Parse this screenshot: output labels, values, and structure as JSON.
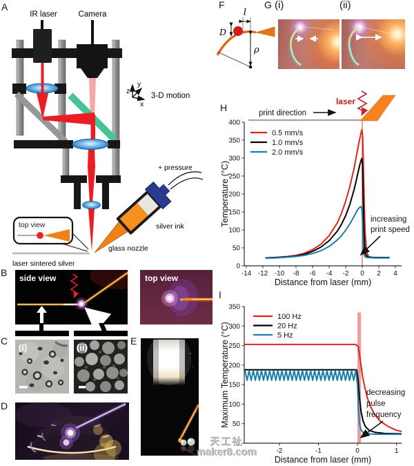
{
  "figure": {
    "panels": {
      "A": {
        "label": "A",
        "ir_laser": "IR laser",
        "camera": "Camera",
        "motion": "3-D motion",
        "axis_x": "x",
        "axis_y": "y",
        "axis_z": "z",
        "pressure": "+ pressure",
        "silver_ink": "silver ink",
        "glass_nozzle": "glass nozzle",
        "substrate": "laser sintered silver",
        "inset_title": "top view"
      },
      "B": {
        "label": "B",
        "side_view": "side view",
        "top_view": "top view"
      },
      "C": {
        "label": "C",
        "i": "(i)",
        "ii": "(ii)"
      },
      "D": {
        "label": "D"
      },
      "E": {
        "label": "E"
      },
      "F": {
        "label": "F",
        "dia": "D",
        "len": "l",
        "rho": "ρ"
      },
      "G": {
        "label": "G",
        "i": "(i)",
        "ii": "(ii)"
      },
      "H": {
        "label": "H"
      },
      "I": {
        "label": "I"
      }
    },
    "watermark": {
      "line1": "天工社",
      "line2": "maker8.com"
    }
  },
  "chart_data": [
    {
      "id": "H",
      "type": "line",
      "xlabel": "Distance from laser (mm)",
      "ylabel": "Temperature (°C)",
      "xlim": [
        -14.25,
        4.75
      ],
      "ylim": [
        0,
        400
      ],
      "xticks": [
        -14,
        -12,
        -10,
        -8,
        -6,
        -4,
        -2,
        0,
        2,
        4
      ],
      "yticks": [
        0,
        50,
        100,
        150,
        200,
        250,
        300,
        350,
        400
      ],
      "grid": false,
      "legend_position": "top-left inside",
      "print_direction": "print direction",
      "laser_label": "laser",
      "annotation_lines": [
        "increasing",
        "print speed"
      ],
      "laser_line": {
        "x": 0,
        "color": "#cf6f6f",
        "extend_top": 3
      },
      "series": [
        {
          "name": "0.5 mm/s",
          "color": "#e02418",
          "points": [
            [
              -11.7,
              22
            ],
            [
              -10.5,
              23
            ],
            [
              -9,
              26
            ],
            [
              -8,
              29
            ],
            [
              -7,
              35
            ],
            [
              -6,
              45
            ],
            [
              -5,
              60
            ],
            [
              -4,
              84
            ],
            [
              -3,
              120
            ],
            [
              -2.5,
              147
            ],
            [
              -2,
              180
            ],
            [
              -1.5,
              221
            ],
            [
              -1,
              270
            ],
            [
              -0.7,
              307
            ],
            [
              -0.5,
              331
            ],
            [
              -0.3,
              354
            ],
            [
              -0.15,
              370
            ],
            [
              -0.05,
              379
            ],
            [
              0.05,
              362
            ],
            [
              0.15,
              270
            ],
            [
              0.25,
              165
            ],
            [
              0.35,
              90
            ],
            [
              0.5,
              45
            ],
            [
              0.65,
              30
            ],
            [
              0.85,
              25
            ],
            [
              1.2,
              23
            ],
            [
              2,
              23
            ],
            [
              3.3,
              23
            ]
          ]
        },
        {
          "name": "1.0 mm/s",
          "color": "#000000",
          "points": [
            [
              -11.7,
              22
            ],
            [
              -10.5,
              23
            ],
            [
              -9,
              25
            ],
            [
              -8,
              27
            ],
            [
              -7,
              32
            ],
            [
              -6,
              40
            ],
            [
              -5,
              52
            ],
            [
              -4,
              70
            ],
            [
              -3,
              97
            ],
            [
              -2.5,
              116
            ],
            [
              -2,
              140
            ],
            [
              -1.5,
              171
            ],
            [
              -1,
              211
            ],
            [
              -0.7,
              240
            ],
            [
              -0.5,
              261
            ],
            [
              -0.3,
              281
            ],
            [
              -0.15,
              293
            ],
            [
              -0.05,
              299
            ],
            [
              0.02,
              288
            ],
            [
              0.1,
              205
            ],
            [
              0.18,
              115
            ],
            [
              0.28,
              58
            ],
            [
              0.4,
              33
            ],
            [
              0.55,
              26
            ],
            [
              0.8,
              24
            ],
            [
              1.5,
              23
            ],
            [
              3.3,
              23
            ]
          ]
        },
        {
          "name": "2.0 mm/s",
          "color": "#177fad",
          "points": [
            [
              -11.7,
              21
            ],
            [
              -10.5,
              22
            ],
            [
              -9,
              24
            ],
            [
              -8,
              26
            ],
            [
              -7,
              29
            ],
            [
              -6,
              34
            ],
            [
              -5,
              42
            ],
            [
              -4,
              54
            ],
            [
              -3,
              72
            ],
            [
              -2.5,
              84
            ],
            [
              -2,
              99
            ],
            [
              -1.5,
              117
            ],
            [
              -1,
              137
            ],
            [
              -0.7,
              150
            ],
            [
              -0.5,
              158
            ],
            [
              -0.3,
              163
            ],
            [
              -0.15,
              165
            ],
            [
              -0.05,
              160
            ],
            [
              0.02,
              135
            ],
            [
              0.08,
              85
            ],
            [
              0.15,
              48
            ],
            [
              0.25,
              29
            ],
            [
              0.4,
              24
            ],
            [
              0.6,
              23
            ],
            [
              1.5,
              22
            ],
            [
              3.3,
              22
            ]
          ]
        }
      ]
    },
    {
      "id": "I",
      "type": "line",
      "xlabel": "Distance from laser (mm)",
      "ylabel": "Maximum Temperature (°C)",
      "xlim": [
        -2.9,
        1.13
      ],
      "ylim": [
        0,
        350
      ],
      "xticks": [
        -2,
        -1,
        0,
        1
      ],
      "yticks": [
        0,
        50,
        100,
        150,
        200,
        250,
        300,
        350
      ],
      "grid": false,
      "legend_position": "top-left inside",
      "annotation_lines": [
        "decreasing",
        "pulse",
        "frequency"
      ],
      "laser_band": {
        "x0": 0,
        "x1": 0.09,
        "y_top": 335,
        "color": "#ef9090",
        "opacity": 0.9
      },
      "series": [
        {
          "name": "100 Hz",
          "color": "#e02418",
          "points": [
            [
              -2.9,
              253
            ],
            [
              -1.5,
              253
            ],
            [
              -0.5,
              253
            ],
            [
              -0.05,
              253
            ],
            [
              0.02,
              248
            ],
            [
              0.05,
              228
            ],
            [
              0.09,
              200
            ],
            [
              0.13,
              172
            ],
            [
              0.18,
              146
            ],
            [
              0.25,
              117
            ],
            [
              0.33,
              95
            ],
            [
              0.45,
              72
            ],
            [
              0.6,
              55
            ],
            [
              0.8,
              42
            ],
            [
              1,
              33
            ],
            [
              1.13,
              30
            ]
          ]
        },
        {
          "name": "20 Hz",
          "color": "#000000",
          "points": [
            [
              -2.9,
              188
            ],
            [
              -1.5,
              188
            ],
            [
              -0.5,
              188
            ],
            [
              -0.02,
              188
            ],
            [
              0.02,
              160
            ],
            [
              0.05,
              118
            ],
            [
              0.09,
              82
            ],
            [
              0.14,
              58
            ],
            [
              0.2,
              43
            ],
            [
              0.3,
              33
            ],
            [
              0.45,
              28
            ],
            [
              0.7,
              25
            ],
            [
              1.13,
              24
            ]
          ]
        },
        {
          "name": "5 Hz",
          "color": "#177fad",
          "oscillation": {
            "x_start": -2.88,
            "x_end": -0.04,
            "y_min": 161,
            "y_max": 186,
            "period": 0.105
          },
          "points": [
            [
              0,
              150
            ],
            [
              0.02,
              92
            ],
            [
              0.05,
              52
            ],
            [
              0.09,
              34
            ],
            [
              0.14,
              28
            ],
            [
              0.25,
              24
            ],
            [
              0.5,
              23
            ],
            [
              1.13,
              23
            ]
          ]
        }
      ]
    }
  ]
}
